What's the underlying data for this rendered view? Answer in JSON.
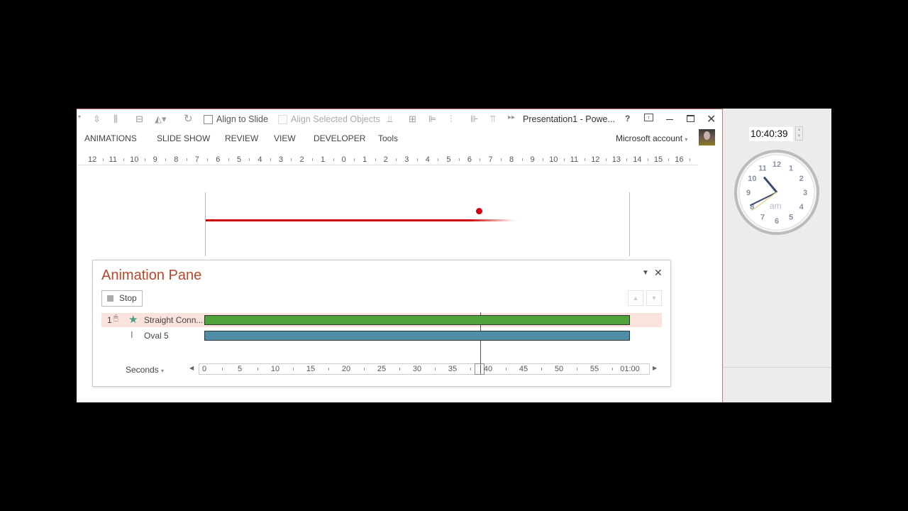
{
  "toolbar": {
    "align_to_slide": "Align to Slide",
    "align_selected": "Align Selected Objects",
    "title": "Presentation1 - Powe...",
    "help": "?"
  },
  "menu": [
    "ANIMATIONS",
    "SLIDE SHOW",
    "REVIEW",
    "VIEW",
    "DEVELOPER",
    "Tools"
  ],
  "account": "Microsoft account",
  "ruler": [
    "12",
    "11",
    "10",
    "9",
    "8",
    "7",
    "6",
    "5",
    "4",
    "3",
    "2",
    "1",
    "0",
    "1",
    "2",
    "3",
    "4",
    "5",
    "6",
    "7",
    "8",
    "9",
    "10",
    "11",
    "12",
    "13",
    "14",
    "15",
    "16"
  ],
  "pane": {
    "title": "Animation Pane",
    "stop": "Stop",
    "items": [
      {
        "index": "1",
        "name": "Straight Conn...",
        "color": "#4ea23a",
        "start": 0,
        "end": 60
      },
      {
        "index": "",
        "name": "Oval 5",
        "color": "#4f8ea6",
        "start": 0,
        "end": 60
      }
    ],
    "units": "Seconds",
    "ticks": [
      "0",
      "5",
      "10",
      "15",
      "20",
      "25",
      "30",
      "35",
      "40",
      "45",
      "50",
      "55",
      "01:00"
    ],
    "playhead_seconds": 39
  },
  "clock": {
    "time": "10:40:39",
    "ampm": "am",
    "numbers": [
      "12",
      "1",
      "2",
      "3",
      "4",
      "5",
      "6",
      "7",
      "8",
      "9",
      "10",
      "11"
    ]
  },
  "colors": {
    "accent": "#b7472a",
    "selected_row": "#fbe3dd"
  }
}
